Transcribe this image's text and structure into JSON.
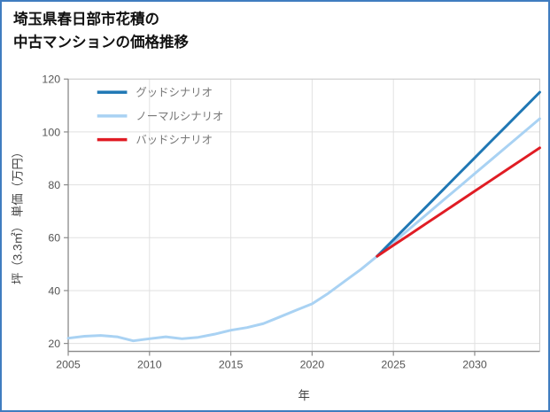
{
  "title": {
    "line1": "埼玉県春日部市花積の",
    "line2": "中古マンションの価格推移"
  },
  "frame": {
    "border_color": "#3f7cc0",
    "background": "#ffffff"
  },
  "chart_data": {
    "type": "line",
    "title": "埼玉県春日部市花積の中古マンションの価格推移",
    "xlabel": "年",
    "ylabel": "坪（3.3㎡） 単価（万円）",
    "xlim": [
      2005,
      2034
    ],
    "ylim": [
      17,
      120
    ],
    "x_ticks": [
      2005,
      2010,
      2015,
      2020,
      2025,
      2030
    ],
    "y_ticks": [
      20,
      40,
      60,
      80,
      100,
      120
    ],
    "grid": true,
    "legend_position": "top-left",
    "grid_color": "#e0e0e0",
    "box_color": "#cccccc",
    "axis_color": "#8a8a8a",
    "tick_color": "#8a8a8a",
    "series": [
      {
        "name": "グッドシナリオ",
        "color": "#1f77b4",
        "width": 3,
        "x": [
          2024,
          2025,
          2026,
          2027,
          2028,
          2029,
          2030,
          2031,
          2032,
          2033,
          2034
        ],
        "y": [
          53,
          59.2,
          65.4,
          71.6,
          77.8,
          84,
          90.2,
          96.4,
          102.6,
          108.8,
          115
        ]
      },
      {
        "name": "ノーマルシナリオ",
        "color": "#a9d2f3",
        "width": 3,
        "x": [
          2005,
          2006,
          2007,
          2008,
          2009,
          2010,
          2011,
          2012,
          2013,
          2014,
          2015,
          2016,
          2017,
          2018,
          2019,
          2020,
          2021,
          2022,
          2023,
          2024,
          2025,
          2026,
          2027,
          2028,
          2029,
          2030,
          2031,
          2032,
          2033,
          2034
        ],
        "y": [
          22,
          22.7,
          23,
          22.5,
          21,
          21.8,
          22.5,
          21.8,
          22.3,
          23.5,
          25,
          26,
          27.5,
          30,
          32.5,
          35,
          39,
          43.5,
          48,
          53,
          58.2,
          63.4,
          68.6,
          73.8,
          79,
          84.2,
          89.4,
          94.6,
          99.8,
          105
        ]
      },
      {
        "name": "バッドシナリオ",
        "color": "#e01c24",
        "width": 3,
        "x": [
          2024,
          2025,
          2026,
          2027,
          2028,
          2029,
          2030,
          2031,
          2032,
          2033,
          2034
        ],
        "y": [
          53,
          57.1,
          61.2,
          65.3,
          69.4,
          73.5,
          77.6,
          81.7,
          85.8,
          89.9,
          94
        ]
      }
    ]
  }
}
